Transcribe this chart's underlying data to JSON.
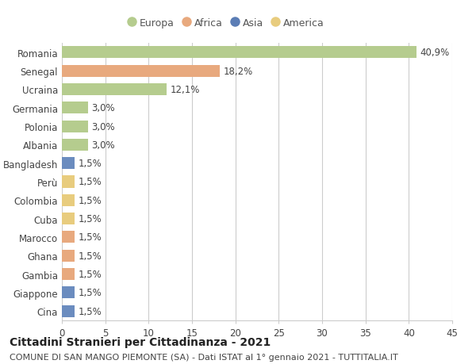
{
  "countries": [
    "Romania",
    "Senegal",
    "Ucraina",
    "Germania",
    "Polonia",
    "Albania",
    "Bangladesh",
    "Perù",
    "Colombia",
    "Cuba",
    "Marocco",
    "Ghana",
    "Gambia",
    "Giappone",
    "Cina"
  ],
  "values": [
    40.9,
    18.2,
    12.1,
    3.0,
    3.0,
    3.0,
    1.5,
    1.5,
    1.5,
    1.5,
    1.5,
    1.5,
    1.5,
    1.5,
    1.5
  ],
  "labels": [
    "40,9%",
    "18,2%",
    "12,1%",
    "3,0%",
    "3,0%",
    "3,0%",
    "1,5%",
    "1,5%",
    "1,5%",
    "1,5%",
    "1,5%",
    "1,5%",
    "1,5%",
    "1,5%",
    "1,5%"
  ],
  "colors": [
    "#b5cc8e",
    "#e8a97e",
    "#b5cc8e",
    "#b5cc8e",
    "#b5cc8e",
    "#b5cc8e",
    "#6b8cbf",
    "#e8cc7e",
    "#e8cc7e",
    "#e8cc7e",
    "#e8a97e",
    "#e8a97e",
    "#e8a97e",
    "#6b8cbf",
    "#6b8cbf"
  ],
  "legend_labels": [
    "Europa",
    "Africa",
    "Asia",
    "America"
  ],
  "legend_colors": [
    "#b5cc8e",
    "#e8a97e",
    "#5b7db5",
    "#e8cc7e"
  ],
  "xlim": [
    0,
    45
  ],
  "xticks": [
    0,
    5,
    10,
    15,
    20,
    25,
    30,
    35,
    40,
    45
  ],
  "title": "Cittadini Stranieri per Cittadinanza - 2021",
  "subtitle": "COMUNE DI SAN MANGO PIEMONTE (SA) - Dati ISTAT al 1° gennaio 2021 - TUTTITALIA.IT",
  "bg_color": "#ffffff",
  "bar_height": 0.65,
  "title_fontsize": 10,
  "subtitle_fontsize": 8,
  "label_fontsize": 8.5,
  "tick_fontsize": 8.5,
  "legend_fontsize": 9
}
